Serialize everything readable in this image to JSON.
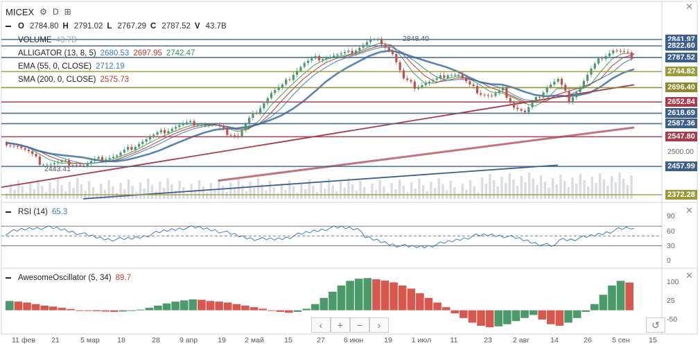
{
  "header": {
    "symbol": "MICEX",
    "interval": "D",
    "ohlcv": {
      "o_label": "O",
      "o": "2784.80",
      "h_label": "H",
      "h": "2791.02",
      "l_label": "L",
      "l": "2767.29",
      "c_label": "C",
      "c": "2787.52",
      "v_label": "V",
      "v": "43.7B"
    }
  },
  "indicators": {
    "volume": {
      "label": "VOLUME",
      "value": "43.7B"
    },
    "alligator": {
      "label": "ALLIGATOR (13, 8, 5)",
      "v1": "2680.53",
      "v2": "2697.95",
      "v3": "2742.47"
    },
    "ema": {
      "label": "EMA (55, 0, CLOSE)",
      "value": "2712.19"
    },
    "sma": {
      "label": "SMA (200, 0, CLOSE)",
      "value": "2575.73"
    }
  },
  "rsi": {
    "label": "RSI (14)",
    "value": "65.3",
    "ticks": [
      "90",
      "60",
      "30",
      "0"
    ]
  },
  "ao": {
    "label": "AwesomeOscillator (5, 34)",
    "value": "89.7",
    "ticks": [
      "100",
      "25",
      "-50"
    ]
  },
  "price_axis": {
    "label_2500": "2500.00"
  },
  "price_tags": [
    {
      "text": "2841.97",
      "color": "#3a5f8f"
    },
    {
      "text": "2822.60",
      "color": "#3a5f8f"
    },
    {
      "text": "2787.52",
      "color": "#3a5f8f"
    },
    {
      "text": "2744.82",
      "color": "#9a9a3a"
    },
    {
      "text": "2696.40",
      "color": "#8a8a2a"
    },
    {
      "text": "2652.84",
      "color": "#a83a4a"
    },
    {
      "text": "2618.69",
      "color": "#3a5f8f"
    },
    {
      "text": "2587.36",
      "color": "#3a5f8f"
    },
    {
      "text": "2547.80",
      "color": "#a83a4a"
    },
    {
      "text": "2457.99",
      "color": "#3a5f8f"
    },
    {
      "text": "2372.28",
      "color": "#9a9a3a"
    }
  ],
  "annotations": {
    "high": "2848.40",
    "low": "2443.41"
  },
  "x_labels": [
    "11 фев",
    "21",
    "5 мар",
    "18",
    "28",
    "9 апр",
    "19",
    "2 май",
    "15",
    "27",
    "6 июн",
    "19",
    "1 июл",
    "11",
    "23",
    "2 авг",
    "14",
    "26",
    "5 сен",
    "15"
  ],
  "nav": {
    "prev": "‹",
    "zoom_in": "+",
    "zoom_out": "−",
    "next": "›",
    "reset": "↺"
  },
  "chart_data": {
    "type": "candlestick",
    "title": "MICEX",
    "period": "D",
    "x_labels": [
      "11 фев",
      "21",
      "5 мар",
      "18",
      "28",
      "9 апр",
      "19",
      "2 май",
      "15",
      "27",
      "6 июн",
      "19",
      "1 июл",
      "11",
      "23",
      "2 авг",
      "14",
      "26",
      "5 сен",
      "15"
    ],
    "y_axis_labels": [
      "2841.97",
      "2822.60",
      "2787.52",
      "2744.82",
      "2696.40",
      "2652.84",
      "2618.69",
      "2587.36",
      "2547.80",
      "2500.00",
      "2457.99",
      "2372.28"
    ],
    "close_path": [
      2530,
      2520,
      2500,
      2470,
      2465,
      2470,
      2468,
      2460,
      2475,
      2485,
      2490,
      2510,
      2530,
      2545,
      2560,
      2575,
      2585,
      2590,
      2585,
      2580,
      2560,
      2550,
      2600,
      2640,
      2680,
      2700,
      2740,
      2770,
      2785,
      2790,
      2795,
      2800,
      2820,
      2840,
      2835,
      2800,
      2720,
      2700,
      2710,
      2720,
      2740,
      2735,
      2700,
      2680,
      2670,
      2690,
      2640,
      2620,
      2660,
      2700,
      2720,
      2660,
      2700,
      2750,
      2790,
      2810,
      2800,
      2787.52
    ],
    "ohlc_last": {
      "open": 2784.8,
      "high": 2791.02,
      "low": 2767.29,
      "close": 2787.52,
      "volume": "43.7B"
    },
    "levels": [
      2841.97,
      2822.6,
      2787.52,
      2744.82,
      2696.4,
      2652.84,
      2618.69,
      2587.36,
      2547.8,
      2457.99,
      2372.28
    ],
    "extremes": {
      "high": 2848.4,
      "low": 2443.41
    },
    "indicators_last": {
      "alligator": [
        2680.53,
        2697.95,
        2742.47
      ],
      "ema55": 2712.19,
      "sma200": 2575.73,
      "rsi14": 65.3,
      "ao": 89.7
    },
    "rsi_range": [
      0,
      90
    ],
    "ao_range": [
      -50,
      100
    ],
    "ao_values": [
      30,
      28,
      25,
      20,
      15,
      12,
      8,
      4,
      0,
      -2,
      -3,
      -4,
      -5,
      -4,
      -2,
      2,
      8,
      15,
      22,
      28,
      32,
      35,
      34,
      30,
      28,
      25,
      20,
      15,
      10,
      5,
      0,
      -5,
      -8,
      -5,
      5,
      20,
      40,
      60,
      80,
      95,
      102,
      104,
      100,
      96,
      90,
      80,
      70,
      55,
      40,
      25,
      10,
      -10,
      -25,
      -40,
      -50,
      -55,
      -52,
      -45,
      -35,
      -25,
      -15,
      -30,
      -45,
      -50,
      -40,
      -25,
      -5,
      20,
      50,
      80,
      95,
      89.7
    ]
  }
}
